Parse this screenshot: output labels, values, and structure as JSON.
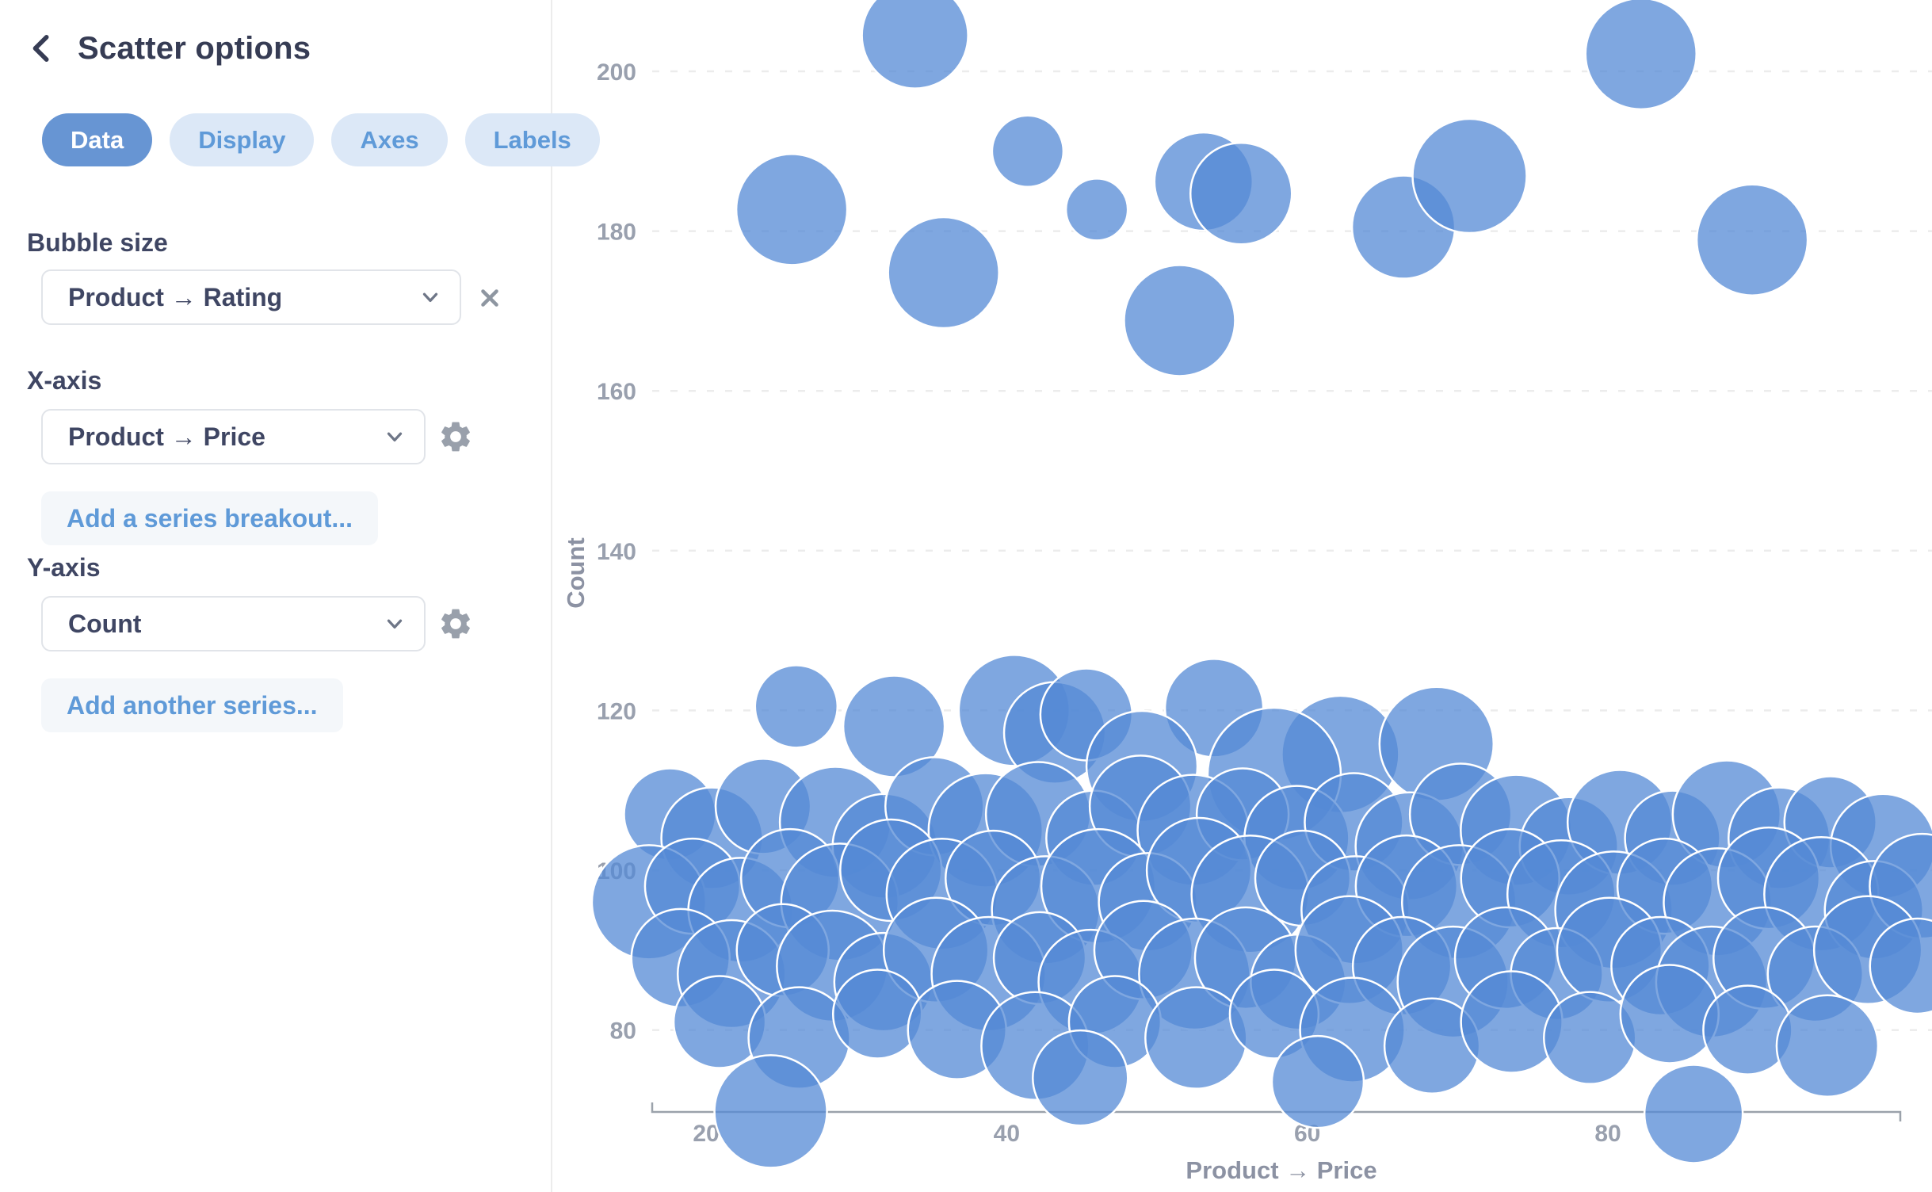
{
  "sidebar": {
    "title": "Scatter options",
    "tabs": [
      {
        "label": "Data",
        "active": true
      },
      {
        "label": "Display",
        "active": false
      },
      {
        "label": "Axes",
        "active": false
      },
      {
        "label": "Labels",
        "active": false
      }
    ],
    "bubble_size": {
      "label": "Bubble size",
      "value": "Product → Rating"
    },
    "x_axis": {
      "label": "X-axis",
      "value": "Product → Price",
      "add_label": "Add a series breakout..."
    },
    "y_axis": {
      "label": "Y-axis",
      "value": "Count",
      "add_label": "Add another series..."
    }
  },
  "colors": {
    "accent_blue": "#6795D3",
    "tab_inactive_bg": "#DCE8F7",
    "link_blue": "#5F9AD8",
    "bubble_fill": "#548AD5",
    "bubble_stroke": "#FFFFFF",
    "gridline": "#ECECEC",
    "axis_line": "#9BA2AB",
    "tick_text": "#99A0AE"
  },
  "chart_data": {
    "type": "scatter",
    "subtype": "bubble",
    "title": "",
    "xlabel": "Product → Price",
    "ylabel": "Count",
    "size_field": "Product → Rating",
    "x_ticks": [
      20,
      40,
      60,
      80
    ],
    "y_ticks": [
      80,
      100,
      120,
      140,
      160,
      180,
      200
    ],
    "xlim": [
      16,
      101.5
    ],
    "ylim": [
      68,
      209
    ],
    "grid": "dashed-horizontal",
    "legend": "none",
    "bubble_opacity": 0.75,
    "bubbles": [
      [
        33.9,
        204.5,
        67
      ],
      [
        82.2,
        202.2,
        70
      ],
      [
        41.4,
        190.0,
        45
      ],
      [
        25.7,
        182.7,
        70
      ],
      [
        46.0,
        182.7,
        39
      ],
      [
        53.1,
        186.2,
        62
      ],
      [
        55.6,
        184.7,
        64
      ],
      [
        35.8,
        174.8,
        70
      ],
      [
        66.4,
        180.5,
        65
      ],
      [
        70.8,
        186.9,
        72
      ],
      [
        51.5,
        168.8,
        70
      ],
      [
        89.6,
        178.9,
        70
      ],
      [
        26.0,
        120.5,
        52
      ],
      [
        32.5,
        118.0,
        64
      ],
      [
        40.5,
        120.0,
        70
      ],
      [
        43.2,
        117.2,
        64
      ],
      [
        45.3,
        119.5,
        58
      ],
      [
        53.8,
        120.3,
        62
      ],
      [
        62.2,
        114.5,
        74
      ],
      [
        68.6,
        115.8,
        72
      ],
      [
        57.8,
        112.0,
        84
      ],
      [
        49.0,
        113.0,
        70
      ],
      [
        17.6,
        107,
        58
      ],
      [
        20.4,
        104,
        64
      ],
      [
        23.8,
        108,
        60
      ],
      [
        28.6,
        106,
        70
      ],
      [
        31.9,
        103,
        66
      ],
      [
        35.2,
        108,
        62
      ],
      [
        38.6,
        105,
        72
      ],
      [
        42.1,
        107,
        66
      ],
      [
        45.8,
        104,
        60
      ],
      [
        48.9,
        108,
        64
      ],
      [
        52.4,
        105,
        70
      ],
      [
        55.7,
        107,
        58
      ],
      [
        59.3,
        104,
        66
      ],
      [
        63.1,
        106,
        62
      ],
      [
        66.8,
        103,
        68
      ],
      [
        70.2,
        107,
        64
      ],
      [
        73.9,
        105,
        70
      ],
      [
        77.4,
        103,
        62
      ],
      [
        80.8,
        106,
        66
      ],
      [
        84.3,
        104,
        60
      ],
      [
        87.9,
        107,
        68
      ],
      [
        91.4,
        104,
        64
      ],
      [
        94.8,
        106,
        58
      ],
      [
        98.3,
        103,
        66
      ],
      [
        16.2,
        96,
        72
      ],
      [
        19.1,
        98,
        60
      ],
      [
        22.3,
        95,
        66
      ],
      [
        25.6,
        99,
        62
      ],
      [
        28.9,
        96,
        74
      ],
      [
        32.3,
        100,
        64
      ],
      [
        35.7,
        97,
        70
      ],
      [
        39.1,
        99,
        60
      ],
      [
        42.6,
        95,
        68
      ],
      [
        46.1,
        98,
        72
      ],
      [
        49.4,
        96,
        62
      ],
      [
        52.8,
        100,
        66
      ],
      [
        56.2,
        97,
        74
      ],
      [
        59.7,
        99,
        60
      ],
      [
        63.2,
        95,
        68
      ],
      [
        66.6,
        98,
        64
      ],
      [
        70.1,
        96,
        72
      ],
      [
        73.5,
        99,
        62
      ],
      [
        76.9,
        97,
        68
      ],
      [
        80.4,
        95,
        74
      ],
      [
        83.8,
        98,
        60
      ],
      [
        87.3,
        96,
        68
      ],
      [
        90.7,
        99,
        64
      ],
      [
        94.2,
        97,
        72
      ],
      [
        97.7,
        95,
        62
      ],
      [
        100.9,
        98,
        66
      ],
      [
        18.3,
        89,
        62
      ],
      [
        21.7,
        87,
        68
      ],
      [
        25.1,
        90,
        58
      ],
      [
        28.4,
        88,
        70
      ],
      [
        31.8,
        86,
        62
      ],
      [
        35.3,
        90,
        66
      ],
      [
        38.8,
        87,
        72
      ],
      [
        42.2,
        89,
        58
      ],
      [
        45.6,
        86,
        66
      ],
      [
        49.1,
        90,
        62
      ],
      [
        52.5,
        87,
        70
      ],
      [
        55.9,
        89,
        64
      ],
      [
        59.4,
        86,
        60
      ],
      [
        62.8,
        90,
        68
      ],
      [
        66.3,
        88,
        62
      ],
      [
        69.7,
        86,
        70
      ],
      [
        73.2,
        89,
        64
      ],
      [
        76.6,
        87,
        58
      ],
      [
        80.1,
        90,
        66
      ],
      [
        83.5,
        88,
        62
      ],
      [
        86.9,
        86,
        70
      ],
      [
        90.4,
        89,
        64
      ],
      [
        93.8,
        87,
        60
      ],
      [
        97.3,
        90,
        68
      ],
      [
        100.6,
        88,
        60
      ],
      [
        20.9,
        81,
        58
      ],
      [
        26.2,
        79,
        64
      ],
      [
        31.4,
        82,
        56
      ],
      [
        36.7,
        80,
        62
      ],
      [
        41.9,
        78,
        68
      ],
      [
        47.2,
        81,
        58
      ],
      [
        52.6,
        79,
        64
      ],
      [
        57.8,
        82,
        56
      ],
      [
        63.0,
        80,
        66
      ],
      [
        68.3,
        78,
        60
      ],
      [
        73.6,
        81,
        64
      ],
      [
        78.8,
        79,
        58
      ],
      [
        84.1,
        82,
        62
      ],
      [
        89.3,
        80,
        56
      ],
      [
        94.6,
        78,
        64
      ],
      [
        24.3,
        69.8,
        71
      ],
      [
        85.7,
        69.5,
        62
      ],
      [
        44.9,
        74,
        60
      ],
      [
        60.7,
        73.5,
        58
      ]
    ]
  }
}
